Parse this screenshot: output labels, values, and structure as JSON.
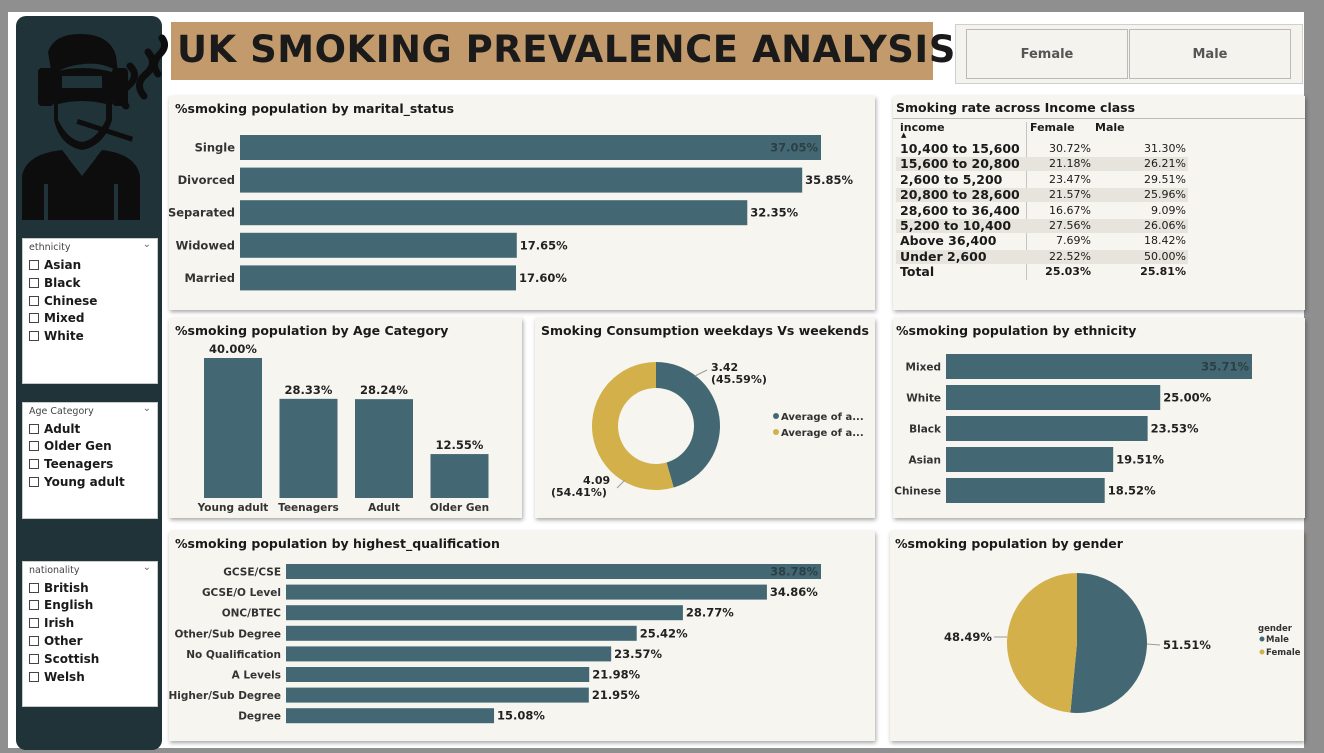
{
  "title": "UK SMOKING PREVALENCE ANALYSIS",
  "gender_buttons": [
    "Female",
    "Male"
  ],
  "colors": {
    "teal": "#436873",
    "gold": "#d3b04a",
    "sidebar": "#1f3338",
    "banner": "#c39a6b",
    "panel": "#f7f5ef"
  },
  "icons": {
    "logo": "smoker-icon"
  },
  "slicers": {
    "ethnicity": {
      "title": "ethnicity",
      "items": [
        "Asian",
        "Black",
        "Chinese",
        "Mixed",
        "White"
      ]
    },
    "age": {
      "title": "Age Category",
      "items": [
        "Adult",
        "Older Gen",
        "Teenagers",
        "Young adult"
      ]
    },
    "nationality": {
      "title": "nationality",
      "items": [
        "British",
        "English",
        "Irish",
        "Other",
        "Scottish",
        "Welsh"
      ]
    }
  },
  "income_table": {
    "title": "Smoking rate across Income class",
    "headers": [
      "income",
      "Female",
      "Male"
    ],
    "rows": [
      [
        "10,400 to 15,600",
        "30.72%",
        "31.30%"
      ],
      [
        "15,600 to 20,800",
        "21.18%",
        "26.21%"
      ],
      [
        "2,600 to 5,200",
        "23.47%",
        "29.51%"
      ],
      [
        "20,800 to 28,600",
        "21.57%",
        "25.96%"
      ],
      [
        "28,600 to 36,400",
        "16.67%",
        "9.09%"
      ],
      [
        "5,200 to 10,400",
        "27.56%",
        "26.06%"
      ],
      [
        "Above 36,400",
        "7.69%",
        "18.42%"
      ],
      [
        "Under 2,600",
        "22.52%",
        "50.00%"
      ]
    ],
    "total": [
      "Total",
      "25.03%",
      "25.81%"
    ]
  },
  "chart_data": [
    {
      "id": "marital",
      "type": "bar",
      "orientation": "horizontal",
      "title": "%smoking population by marital_status",
      "categories": [
        "Single",
        "Divorced",
        "Separated",
        "Widowed",
        "Married"
      ],
      "values": [
        37.05,
        35.85,
        32.35,
        17.65,
        17.6
      ],
      "labels": [
        "37.05%",
        "35.85%",
        "32.35%",
        "17.65%",
        "17.60%"
      ],
      "xlim": [
        0,
        37.05
      ]
    },
    {
      "id": "age",
      "type": "bar",
      "orientation": "vertical",
      "title": "%smoking population by Age Category",
      "categories": [
        "Young adult",
        "Teenagers",
        "Adult",
        "Older Gen"
      ],
      "values": [
        40.0,
        28.33,
        28.24,
        12.55
      ],
      "labels": [
        "40.00%",
        "28.33%",
        "28.24%",
        "12.55%"
      ],
      "ylim": [
        0,
        40
      ]
    },
    {
      "id": "weekday",
      "type": "pie",
      "donut": true,
      "title": "Smoking Consumption weekdays Vs weekends",
      "series": [
        {
          "name": "Average of a...",
          "value": 3.42,
          "label_value": "3.42",
          "label_pct": "(45.59%)"
        },
        {
          "name": "Average of a...",
          "value": 4.09,
          "label_value": "4.09",
          "label_pct": "(54.41%)"
        }
      ],
      "legend": "right"
    },
    {
      "id": "ethnicity",
      "type": "bar",
      "orientation": "horizontal",
      "title": "%smoking population by ethnicity",
      "categories": [
        "Mixed",
        "White",
        "Black",
        "Asian",
        "Chinese"
      ],
      "values": [
        35.71,
        25.0,
        23.53,
        19.51,
        18.52
      ],
      "labels": [
        "35.71%",
        "25.00%",
        "23.53%",
        "19.51%",
        "18.52%"
      ],
      "xlim": [
        0,
        35.71
      ]
    },
    {
      "id": "qualification",
      "type": "bar",
      "orientation": "horizontal",
      "title": "%smoking population by highest_qualification",
      "categories": [
        "GCSE/CSE",
        "GCSE/O Level",
        "ONC/BTEC",
        "Other/Sub Degree",
        "No Qualification",
        "A Levels",
        "Higher/Sub Degree",
        "Degree"
      ],
      "values": [
        38.78,
        34.86,
        28.77,
        25.42,
        23.57,
        21.98,
        21.95,
        15.08
      ],
      "labels": [
        "38.78%",
        "34.86%",
        "28.77%",
        "25.42%",
        "23.57%",
        "21.98%",
        "21.95%",
        "15.08%"
      ],
      "xlim": [
        0,
        38.78
      ]
    },
    {
      "id": "gender",
      "type": "pie",
      "title": "%smoking population by gender",
      "series": [
        {
          "name": "Male",
          "value": 51.51,
          "label": "51.51%"
        },
        {
          "name": "Female",
          "value": 48.49,
          "label": "48.49%"
        }
      ],
      "legend_title": "gender",
      "legend": "right"
    }
  ]
}
